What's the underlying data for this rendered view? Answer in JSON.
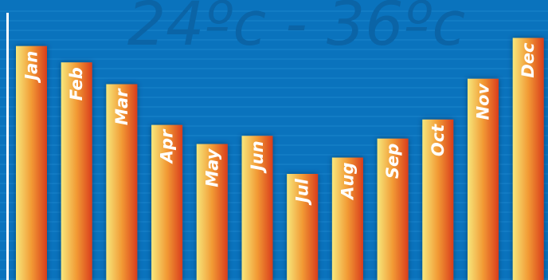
{
  "chart_data": {
    "type": "bar",
    "title": "24ºc - 36ºc",
    "categories": [
      "Jan",
      "Feb",
      "Mar",
      "Apr",
      "May",
      "Jun",
      "Jul",
      "Aug",
      "Sep",
      "Oct",
      "Nov",
      "Dec"
    ],
    "values": [
      86,
      80,
      72,
      57,
      50,
      53,
      39,
      45,
      52,
      59,
      74,
      89
    ],
    "ylim": [
      0,
      100
    ],
    "grid": true,
    "xlabel": "",
    "ylabel": ""
  },
  "colors": {
    "background": "#0a73bd",
    "gridline": "#1a84cc",
    "title": "#0b64a6",
    "bar_light": "#f6e77c",
    "bar_mid": "#f29a34",
    "bar_dark": "#d93d1c",
    "axis": "#ffffff"
  }
}
